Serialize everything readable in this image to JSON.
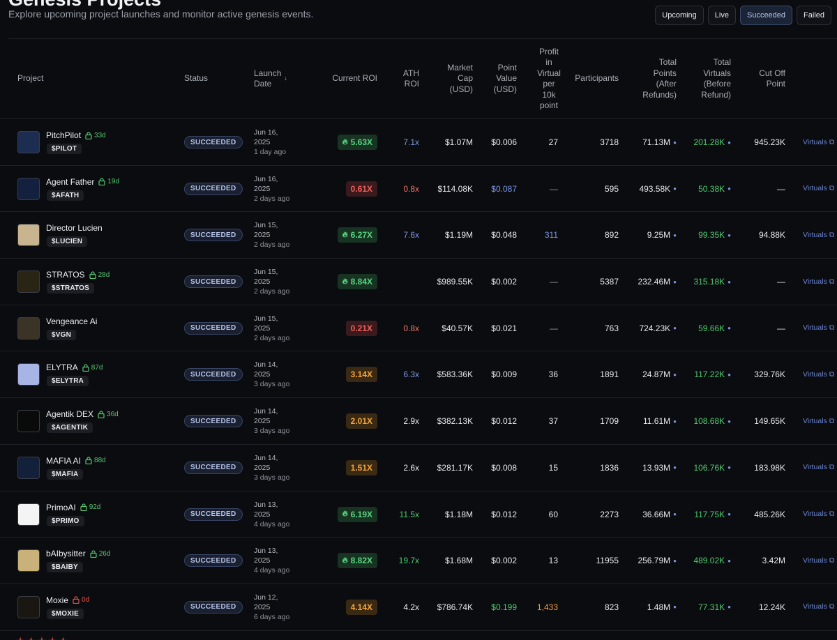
{
  "header": {
    "title": "Genesis Projects",
    "subtitle": "Explore upcoming project launches and monitor active genesis events."
  },
  "filters": [
    {
      "label": "Upcoming",
      "active": false
    },
    {
      "label": "Live",
      "active": false
    },
    {
      "label": "Succeeded",
      "active": true
    },
    {
      "label": "Failed",
      "active": false
    }
  ],
  "columns": {
    "project": "Project",
    "status": "Status",
    "launch_date": "Launch\nDate",
    "current_roi": "Current ROI",
    "ath_roi": "ATH\nROI",
    "market_cap": "Market\nCap\n(USD)",
    "point_value": "Point\nValue\n(USD)",
    "profit": "Profit\nin\nVirtual\nper\n10k\npoint",
    "participants": "Participants",
    "total_points": "Total\nPoints\n(After\nRefunds)",
    "total_virtuals": "Total\nVirtuals\n(Before\nRefund)",
    "cutoff": "Cut Off\nPoint"
  },
  "colors": {
    "accent_blue": "#7b97e6",
    "green": "#4fca6f",
    "red": "#f0605a",
    "orange": "#f2a33a"
  },
  "rows": [
    {
      "name": "PitchPilot",
      "lock_icon": "lock-icon",
      "lock": "33d",
      "lock_color": "green",
      "ticker": "$PILOT",
      "status": "SUCCEEDED",
      "date": "Jun 16,",
      "year": "2025",
      "ago": "1 day ago",
      "roi": "5.63X",
      "roi_tone": "green",
      "roi_flame": true,
      "ath": "7.1x",
      "ath_tone": "blue",
      "mcap": "$1.07M",
      "pv": "$0.006",
      "pv_tone": "light",
      "profit": "27",
      "profit_tone": "light",
      "participants": "3718",
      "points": "71.13M",
      "virtuals": "201.28K",
      "cutoff": "945.23K",
      "link": "Virtuals ⧉",
      "avatar_bg": "#1d2d52"
    },
    {
      "name": "Agent Father",
      "lock_icon": "lock-icon",
      "lock": "19d",
      "lock_color": "green",
      "ticker": "$AFATH",
      "status": "SUCCEEDED",
      "date": "Jun 16,",
      "year": "2025",
      "ago": "2 days ago",
      "roi": "0.61X",
      "roi_tone": "red",
      "roi_flame": false,
      "ath": "0.8x",
      "ath_tone": "red",
      "mcap": "$114.08K",
      "pv": "$0.087",
      "pv_tone": "blue",
      "profit": "—",
      "profit_tone": "dash",
      "participants": "595",
      "points": "493.58K",
      "virtuals": "50.38K",
      "cutoff": "—",
      "link": "Virtuals ⧉",
      "avatar_bg": "#13213f"
    },
    {
      "name": "Director Lucien",
      "lock_icon": "",
      "lock": "",
      "lock_color": "green",
      "ticker": "$LUCIEN",
      "status": "SUCCEEDED",
      "date": "Jun 15,",
      "year": "2025",
      "ago": "2 days ago",
      "roi": "6.27X",
      "roi_tone": "green",
      "roi_flame": true,
      "ath": "7.6x",
      "ath_tone": "blue",
      "mcap": "$1.19M",
      "pv": "$0.048",
      "pv_tone": "light",
      "profit": "311",
      "profit_tone": "blue",
      "participants": "892",
      "points": "9.25M",
      "virtuals": "99.35K",
      "cutoff": "94.88K",
      "link": "Virtuals ⧉",
      "avatar_bg": "#c8b48e"
    },
    {
      "name": "STRATOS",
      "lock_icon": "lock-icon",
      "lock": "28d",
      "lock_color": "green",
      "ticker": "$STRATOS",
      "status": "SUCCEEDED",
      "date": "Jun 15,",
      "year": "2025",
      "ago": "2 days ago",
      "roi": "8.84X",
      "roi_tone": "green",
      "roi_flame": true,
      "ath": "",
      "ath_tone": "light",
      "mcap": "$989.55K",
      "pv": "$0.002",
      "pv_tone": "light",
      "profit": "—",
      "profit_tone": "dash",
      "participants": "5387",
      "points": "232.46M",
      "virtuals": "315.18K",
      "cutoff": "—",
      "link": "Virtuals ⧉",
      "avatar_bg": "#2a2415"
    },
    {
      "name": "Vengeance Ai",
      "lock_icon": "",
      "lock": "",
      "lock_color": "green",
      "ticker": "$VGN",
      "status": "SUCCEEDED",
      "date": "Jun 15,",
      "year": "2025",
      "ago": "2 days ago",
      "roi": "0.21X",
      "roi_tone": "red",
      "roi_flame": false,
      "ath": "0.8x",
      "ath_tone": "red",
      "mcap": "$40.57K",
      "pv": "$0.021",
      "pv_tone": "light",
      "profit": "—",
      "profit_tone": "dash",
      "participants": "763",
      "points": "724.23K",
      "virtuals": "59.66K",
      "cutoff": "—",
      "link": "Virtuals ⧉",
      "avatar_bg": "#3a3326"
    },
    {
      "name": "ELYTRA",
      "lock_icon": "lock-icon",
      "lock": "87d",
      "lock_color": "green",
      "ticker": "$ELYTRA",
      "status": "SUCCEEDED",
      "date": "Jun 14,",
      "year": "2025",
      "ago": "3 days ago",
      "roi": "3.14X",
      "roi_tone": "orange",
      "roi_flame": false,
      "ath": "6.3x",
      "ath_tone": "blue",
      "mcap": "$583.36K",
      "pv": "$0.009",
      "pv_tone": "light",
      "profit": "36",
      "profit_tone": "light",
      "participants": "1891",
      "points": "24.87M",
      "virtuals": "117.22K",
      "cutoff": "329.76K",
      "link": "Virtuals ⧉",
      "avatar_bg": "#a7b4e6"
    },
    {
      "name": "Agentik DEX",
      "lock_icon": "lock-icon",
      "lock": "36d",
      "lock_color": "green",
      "ticker": "$AGENTIK",
      "status": "SUCCEEDED",
      "date": "Jun 14,",
      "year": "2025",
      "ago": "3 days ago",
      "roi": "2.01X",
      "roi_tone": "orange",
      "roi_flame": false,
      "ath": "2.9x",
      "ath_tone": "light",
      "mcap": "$382.13K",
      "pv": "$0.012",
      "pv_tone": "light",
      "profit": "37",
      "profit_tone": "light",
      "participants": "1709",
      "points": "11.61M",
      "virtuals": "108.68K",
      "cutoff": "149.65K",
      "link": "Virtuals ⧉",
      "avatar_bg": "#0a0a0a"
    },
    {
      "name": "MAFIA AI",
      "lock_icon": "lock-icon",
      "lock": "88d",
      "lock_color": "green",
      "ticker": "$MAFIA",
      "status": "SUCCEEDED",
      "date": "Jun 14,",
      "year": "2025",
      "ago": "3 days ago",
      "roi": "1.51X",
      "roi_tone": "orange",
      "roi_flame": false,
      "ath": "2.6x",
      "ath_tone": "light",
      "mcap": "$281.17K",
      "pv": "$0.008",
      "pv_tone": "light",
      "profit": "15",
      "profit_tone": "light",
      "participants": "1836",
      "points": "13.93M",
      "virtuals": "106.76K",
      "cutoff": "183.98K",
      "link": "Virtuals ⧉",
      "avatar_bg": "#13203a"
    },
    {
      "name": "PrimoAI",
      "lock_icon": "lock-icon",
      "lock": "92d",
      "lock_color": "green",
      "ticker": "$PRIMO",
      "status": "SUCCEEDED",
      "date": "Jun 13,",
      "year": "2025",
      "ago": "4 days ago",
      "roi": "6.19X",
      "roi_tone": "green",
      "roi_flame": true,
      "ath": "11.5x",
      "ath_tone": "green",
      "mcap": "$1.18M",
      "pv": "$0.012",
      "pv_tone": "light",
      "profit": "60",
      "profit_tone": "light",
      "participants": "2273",
      "points": "36.66M",
      "virtuals": "117.75K",
      "cutoff": "485.26K",
      "link": "Virtuals ⧉",
      "avatar_bg": "#f4f4f4"
    },
    {
      "name": "bAIbysitter",
      "lock_icon": "lock-icon",
      "lock": "26d",
      "lock_color": "green",
      "ticker": "$BAIBY",
      "status": "SUCCEEDED",
      "date": "Jun 13,",
      "year": "2025",
      "ago": "4 days ago",
      "roi": "8.82X",
      "roi_tone": "green",
      "roi_flame": true,
      "ath": "19.7x",
      "ath_tone": "green",
      "mcap": "$1.68M",
      "pv": "$0.002",
      "pv_tone": "light",
      "profit": "13",
      "profit_tone": "light",
      "participants": "11955",
      "points": "256.79M",
      "virtuals": "489.02K",
      "cutoff": "3.42M",
      "link": "Virtuals ⧉",
      "avatar_bg": "#c9b27a"
    },
    {
      "name": "Moxie",
      "lock_icon": "lock-icon",
      "lock": "0d",
      "lock_color": "red",
      "ticker": "$MOXIE",
      "status": "SUCCEEDED",
      "date": "Jun 12,",
      "year": "2025",
      "ago": "6 days ago",
      "roi": "4.14X",
      "roi_tone": "orange",
      "roi_flame": false,
      "ath": "4.2x",
      "ath_tone": "light",
      "mcap": "$786.74K",
      "pv": "$0.199",
      "pv_tone": "green",
      "profit": "1,433",
      "profit_tone": "orange",
      "participants": "823",
      "points": "1.48M",
      "virtuals": "77.31K",
      "cutoff": "12.24K",
      "link": "Virtuals ⧉",
      "avatar_bg": "#1a1612"
    }
  ]
}
